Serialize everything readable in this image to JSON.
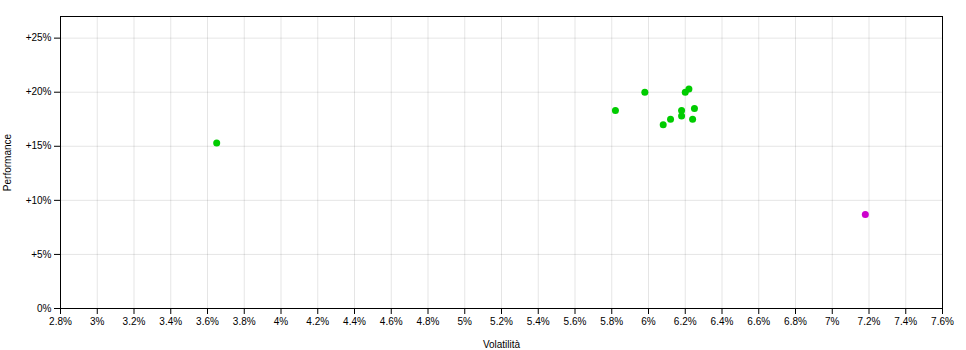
{
  "chart_data": {
    "type": "scatter",
    "xlabel": "Volatilità",
    "ylabel": "Performance",
    "xlim": [
      0.028,
      0.076
    ],
    "ylim": [
      0.0,
      0.27
    ],
    "xticks": [
      {
        "value": 0.028,
        "label": "2.8%"
      },
      {
        "value": 0.03,
        "label": "3%"
      },
      {
        "value": 0.032,
        "label": "3.2%"
      },
      {
        "value": 0.034,
        "label": "3.4%"
      },
      {
        "value": 0.036,
        "label": "3.6%"
      },
      {
        "value": 0.038,
        "label": "3.8%"
      },
      {
        "value": 0.04,
        "label": "4%"
      },
      {
        "value": 0.042,
        "label": "4.2%"
      },
      {
        "value": 0.044,
        "label": "4.4%"
      },
      {
        "value": 0.046,
        "label": "4.6%"
      },
      {
        "value": 0.048,
        "label": "4.8%"
      },
      {
        "value": 0.05,
        "label": "5%"
      },
      {
        "value": 0.052,
        "label": "5.2%"
      },
      {
        "value": 0.054,
        "label": "5.4%"
      },
      {
        "value": 0.056,
        "label": "5.6%"
      },
      {
        "value": 0.058,
        "label": "5.8%"
      },
      {
        "value": 0.06,
        "label": "6%"
      },
      {
        "value": 0.062,
        "label": "6.2%"
      },
      {
        "value": 0.064,
        "label": "6.4%"
      },
      {
        "value": 0.066,
        "label": "6.6%"
      },
      {
        "value": 0.068,
        "label": "6.8%"
      },
      {
        "value": 0.07,
        "label": "7%"
      },
      {
        "value": 0.072,
        "label": "7.2%"
      },
      {
        "value": 0.074,
        "label": "7.4%"
      },
      {
        "value": 0.076,
        "label": "7.6%"
      }
    ],
    "yticks": [
      {
        "value": 0.0,
        "label": "0%"
      },
      {
        "value": 0.05,
        "label": "+5%"
      },
      {
        "value": 0.1,
        "label": "+10%"
      },
      {
        "value": 0.15,
        "label": "+15%"
      },
      {
        "value": 0.2,
        "label": "+20%"
      },
      {
        "value": 0.25,
        "label": "+25%"
      }
    ],
    "grid": true,
    "series": [
      {
        "color": "#00cc00",
        "x": [
          0.0365,
          0.0582,
          0.0598,
          0.0608,
          0.0612,
          0.0618,
          0.0618,
          0.062,
          0.0622,
          0.0625,
          0.0624
        ],
        "values": [
          0.153,
          0.183,
          0.2,
          0.17,
          0.175,
          0.183,
          0.178,
          0.2,
          0.203,
          0.185,
          0.175
        ]
      },
      {
        "color": "#cc00cc",
        "x": [
          0.0718
        ],
        "values": [
          0.087
        ]
      }
    ]
  }
}
